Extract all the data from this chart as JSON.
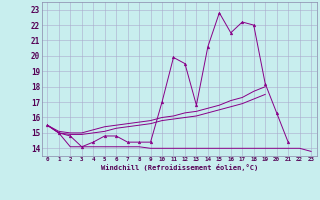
{
  "title": "",
  "xlabel": "Windchill (Refroidissement éolien,°C)",
  "background_color": "#c8eeee",
  "grid_color": "#aaaacc",
  "line_color": "#880088",
  "xlim": [
    -0.5,
    23.5
  ],
  "ylim": [
    13.5,
    23.5
  ],
  "yticks": [
    14,
    15,
    16,
    17,
    18,
    19,
    20,
    21,
    22,
    23
  ],
  "xticks": [
    0,
    1,
    2,
    3,
    4,
    5,
    6,
    7,
    8,
    9,
    10,
    11,
    12,
    13,
    14,
    15,
    16,
    17,
    18,
    19,
    20,
    21,
    22,
    23
  ],
  "series": [
    {
      "x": [
        0,
        1,
        2,
        3,
        4,
        5,
        6,
        7,
        8,
        9,
        10,
        11,
        12,
        13,
        14,
        15,
        16,
        17,
        18,
        19,
        20,
        21
      ],
      "y": [
        15.5,
        15.0,
        14.8,
        14.1,
        14.4,
        14.8,
        14.8,
        14.4,
        14.4,
        14.4,
        17.0,
        19.9,
        19.5,
        16.8,
        20.6,
        22.8,
        21.5,
        22.2,
        22.0,
        18.2,
        16.3,
        14.4
      ],
      "marker": true
    },
    {
      "x": [
        0,
        1,
        2,
        3,
        4,
        5,
        6,
        7,
        8,
        9,
        10,
        11,
        12,
        13,
        14,
        15,
        16,
        17,
        18,
        19
      ],
      "y": [
        15.5,
        15.1,
        15.0,
        15.0,
        15.2,
        15.4,
        15.5,
        15.6,
        15.7,
        15.8,
        16.0,
        16.1,
        16.3,
        16.4,
        16.6,
        16.8,
        17.1,
        17.3,
        17.7,
        18.0
      ],
      "marker": false
    },
    {
      "x": [
        0,
        1,
        2,
        3,
        4,
        5,
        6,
        7,
        8,
        9,
        10,
        11,
        12,
        13,
        14,
        15,
        16,
        17,
        18,
        19
      ],
      "y": [
        15.5,
        15.0,
        14.9,
        14.9,
        15.0,
        15.1,
        15.3,
        15.4,
        15.5,
        15.6,
        15.8,
        15.9,
        16.0,
        16.1,
        16.3,
        16.5,
        16.7,
        16.9,
        17.2,
        17.5
      ],
      "marker": false
    },
    {
      "x": [
        0,
        1,
        2,
        3,
        4,
        5,
        6,
        7,
        8,
        9,
        10,
        11,
        12,
        13,
        14,
        15,
        16,
        17,
        18,
        19,
        20,
        21,
        22,
        23
      ],
      "y": [
        15.5,
        15.0,
        14.1,
        14.1,
        14.1,
        14.1,
        14.1,
        14.1,
        14.1,
        14.0,
        14.0,
        14.0,
        14.0,
        14.0,
        14.0,
        14.0,
        14.0,
        14.0,
        14.0,
        14.0,
        14.0,
        14.0,
        14.0,
        13.8
      ],
      "marker": false
    }
  ]
}
